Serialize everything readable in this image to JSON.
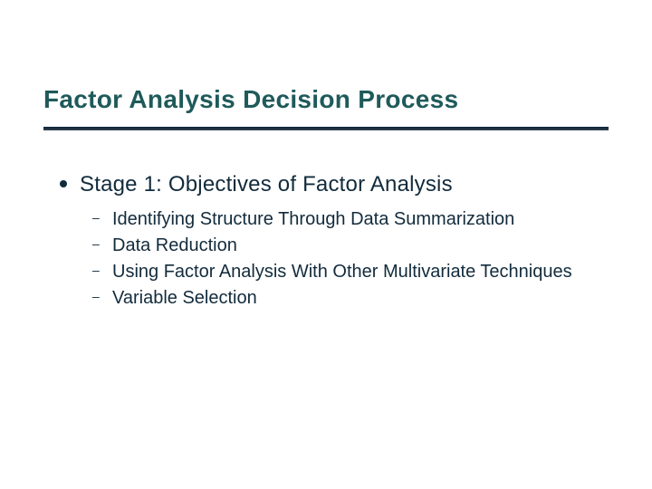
{
  "slide": {
    "title": "Factor Analysis Decision Process",
    "accent_circle_color": "#a6b77e",
    "rule_color": "#122b3c",
    "title_color": "#1f5a5a",
    "text_color": "#122b3c",
    "background_color": "#ffffff",
    "title_fontsize": 28,
    "body_fontsize_l1": 24,
    "body_fontsize_l2": 20,
    "bullets": {
      "level1": [
        {
          "text": "Stage 1: Objectives of Factor Analysis",
          "level2": [
            "Identifying Structure Through Data Summarization",
            "Data Reduction",
            "Using Factor Analysis With Other Multivariate Techniques",
            "Variable Selection"
          ]
        }
      ]
    }
  }
}
